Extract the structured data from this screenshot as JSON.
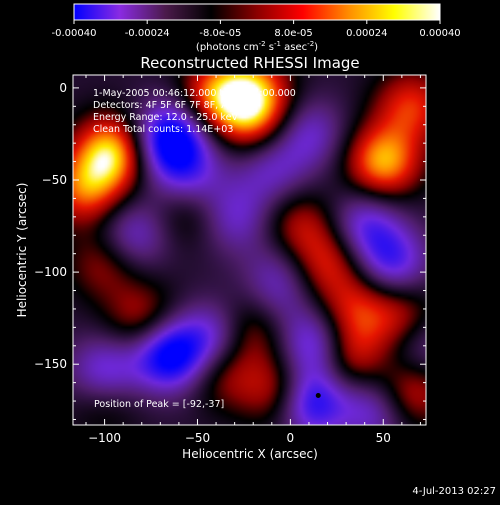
{
  "colorbar": {
    "ticks": [
      "-0.00040",
      "-0.00024",
      "-8.0e-05",
      "8.0e-05",
      "0.00024",
      "0.00040"
    ],
    "min": -0.0004,
    "max": 0.0004,
    "unit_main": "(photons cm",
    "unit_e1": "-2",
    "unit_mid": " s",
    "unit_e2": "-1",
    "unit_mid2": " asec",
    "unit_e3": "-2",
    "unit_end": ")",
    "colors": [
      "#0000ff",
      "#8a2be2",
      "#4b1a4b",
      "#000000",
      "#8b0000",
      "#ff0000",
      "#ff8c00",
      "#ffff00",
      "#ffffff"
    ]
  },
  "plot": {
    "title": "Reconstructed RHESSI Image",
    "xlabel": "Heliocentric X (arcsec)",
    "ylabel": "Heliocentric Y (arcsec)",
    "annotations": [
      "1-May-2005 00:46:12.000 to 00:47:00.000",
      "Detectors: 4F 5F 6F 7F 8F, Att 0",
      "Energy Range: 12.0 - 25.0 keV",
      "Clean     Total counts: 1.14E+03"
    ],
    "peak_label": "Position of Peak = [-92,-37]"
  },
  "footer": {
    "timestamp": "4-Jul-2013 02:27"
  },
  "chart_data": {
    "type": "heatmap",
    "title": "Reconstructed RHESSI Image",
    "xlabel": "Heliocentric X (arcsec)",
    "ylabel": "Heliocentric Y (arcsec)",
    "xlim": [
      -117,
      73
    ],
    "ylim": [
      -183,
      7
    ],
    "x_ticks": [
      -100,
      -50,
      0,
      50
    ],
    "y_ticks": [
      0,
      -50,
      -100,
      -150
    ],
    "x_tick_labels": [
      "−100",
      "−50",
      "0",
      "50"
    ],
    "y_tick_labels": [
      "0",
      "−50",
      "−100",
      "−150"
    ],
    "value_range": [
      -0.0004,
      0.0004
    ],
    "peak_position": [
      -92,
      -37
    ],
    "marker_position": [
      15,
      -167
    ],
    "blobs": [
      {
        "x": -96,
        "y": -35,
        "v": 1.0
      },
      {
        "x": -110,
        "y": -55,
        "v": 0.7
      },
      {
        "x": -40,
        "y": -5,
        "v": 0.75
      },
      {
        "x": -20,
        "y": 0,
        "v": 0.6
      },
      {
        "x": -20,
        "y": -15,
        "v": 0.65
      },
      {
        "x": 50,
        "y": -40,
        "v": 0.9
      },
      {
        "x": 65,
        "y": -10,
        "v": 0.6
      },
      {
        "x": -55,
        "y": -65,
        "v": 0.4
      },
      {
        "x": -80,
        "y": -125,
        "v": 0.45
      },
      {
        "x": -100,
        "y": -95,
        "v": 0.4
      },
      {
        "x": 5,
        "y": -75,
        "v": 0.45
      },
      {
        "x": 20,
        "y": -95,
        "v": 0.55
      },
      {
        "x": 35,
        "y": -120,
        "v": 0.5
      },
      {
        "x": 30,
        "y": -145,
        "v": 0.65
      },
      {
        "x": 60,
        "y": -125,
        "v": 0.5
      },
      {
        "x": 65,
        "y": -165,
        "v": 0.55
      },
      {
        "x": -20,
        "y": -130,
        "v": 0.55
      },
      {
        "x": -5,
        "y": -165,
        "v": 0.6
      },
      {
        "x": -35,
        "y": -155,
        "v": 0.4
      },
      {
        "x": -100,
        "y": -170,
        "v": 0.3
      },
      {
        "x": -60,
        "y": -25,
        "v": -0.6
      },
      {
        "x": -70,
        "y": -30,
        "v": -0.5
      },
      {
        "x": -55,
        "y": -50,
        "v": -0.55
      },
      {
        "x": -30,
        "y": -70,
        "v": -0.45
      },
      {
        "x": -10,
        "y": -45,
        "v": -0.4
      },
      {
        "x": 10,
        "y": -25,
        "v": -0.45
      },
      {
        "x": -65,
        "y": -145,
        "v": -0.95
      },
      {
        "x": -40,
        "y": -135,
        "v": -0.55
      },
      {
        "x": -85,
        "y": -80,
        "v": -0.5
      },
      {
        "x": -100,
        "y": -155,
        "v": -0.6
      },
      {
        "x": 15,
        "y": -140,
        "v": -0.75
      },
      {
        "x": 10,
        "y": -170,
        "v": -0.9
      },
      {
        "x": 40,
        "y": -75,
        "v": -0.55
      },
      {
        "x": 55,
        "y": -95,
        "v": -0.6
      },
      {
        "x": 45,
        "y": -175,
        "v": -0.5
      },
      {
        "x": 70,
        "y": -140,
        "v": -0.4
      },
      {
        "x": -5,
        "y": -100,
        "v": -0.35
      },
      {
        "x": -10,
        "y": -120,
        "v": -0.3
      }
    ]
  }
}
